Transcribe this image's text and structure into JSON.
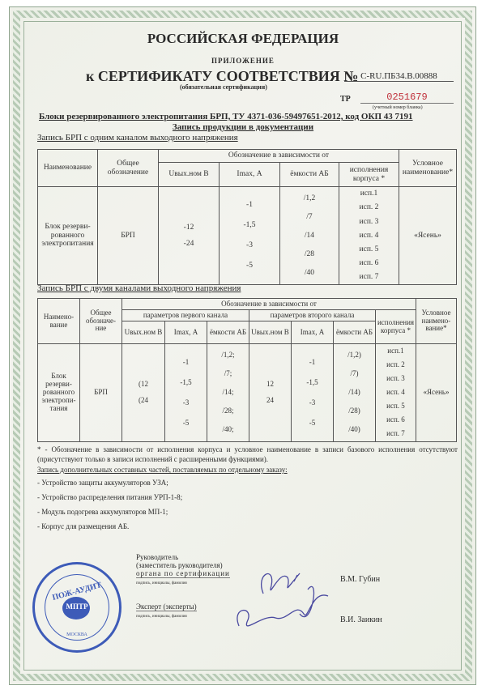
{
  "header": {
    "country": "РОССИЙСКАЯ ФЕДЕРАЦИЯ",
    "appendix": "ПРИЛОЖЕНИЕ",
    "cert_title": "к СЕРТИФИКАТУ СООТВЕТСТВИЯ  №",
    "cert_number": "C-RU.ПБ34.В.00888",
    "cert_type": "(обязательная сертификация)",
    "tr_label": "ТР",
    "form_number": "0251679",
    "form_number_caption": "(учетный номер бланка)",
    "form_number_color": "#c0303a"
  },
  "product": {
    "title": "Блоки резервированного электропитания БРП, ТУ 4371-036-59497651-2012, код ОКП 43 7191",
    "subtitle": "Запись продукции в документации"
  },
  "table1": {
    "caption": "Запись БРП с одним каналом выходного напряжения",
    "headers": {
      "name": "Наименование",
      "common": "Общее обозначение",
      "group": "Обозначение в зависимости от",
      "u": "Uвых.ном В",
      "i": "Imax, А",
      "cap": "ёмкости АБ",
      "exec": "исполнения корпуса *",
      "cond": "Условное наименование*"
    },
    "row": {
      "name": "Блок резерви-рованного электропитания",
      "common": "БРП",
      "u": [
        "-12",
        "-24"
      ],
      "i": [
        "-1",
        "-1,5",
        "-3",
        "-5"
      ],
      "cap": [
        "/1,2",
        "/7",
        "/14",
        "/28",
        "/40"
      ],
      "exec": [
        "исп.1",
        "исп. 2",
        "исп. 3",
        "исп. 4",
        "исп. 5",
        "исп. 6",
        "исп. 7"
      ],
      "cond": "«Ясень»"
    }
  },
  "table2": {
    "caption": "Запись БРП с двумя каналами выходного напряжения",
    "headers": {
      "name": "Наимено-вание",
      "common": "Общее обозначе-ние",
      "group": "Обозначение в зависимости от",
      "ch1": "параметров первого канала",
      "ch2": "параметров второго канала",
      "u": "Uвых.ном В",
      "i": "Imax, А",
      "cap": "ёмкости АБ",
      "exec": "исполнения корпуса *",
      "cond": "Условное наимено-вание*"
    },
    "row": {
      "name": "Блок резерви-рованного электропи-тания",
      "common": "БРП",
      "u1": [
        "(12",
        "(24"
      ],
      "i1": [
        "-1",
        "-1,5",
        "-3",
        "-5"
      ],
      "cap1": [
        "/1,2;",
        "/7;",
        "/14;",
        "/28;",
        "/40;"
      ],
      "u2": [
        "12",
        "24"
      ],
      "i2": [
        "-1",
        "-1,5",
        "-3",
        "-5"
      ],
      "cap2": [
        "/1,2)",
        "/7)",
        "/14)",
        "/28)",
        "/40)"
      ],
      "exec": [
        "исп.1",
        "исп. 2",
        "исп. 3",
        "исп. 4",
        "исп. 5",
        "исп. 6",
        "исп. 7"
      ],
      "cond": "«Ясень»"
    }
  },
  "footnote": "* - Обозначение в зависимости от исполнения корпуса и условное наименование в записи базового исполнения отсутствуют (присутствуют только в записи исполнений с расширенными функциями).",
  "extras": {
    "title": "Запись дополнительных составных частей, поставляемых по отдельному заказу:",
    "items": [
      "- Устройство защиты аккумуляторов УЗА;",
      "- Устройство распределения питания УРП-1-8;",
      "- Модуль подогрева аккумуляторов МП-1;",
      "- Корпус для размещения АБ."
    ]
  },
  "signatures": {
    "head_label": "Руководитель",
    "head_label2": "(заместитель руководителя)",
    "head_label3": "органа по сертификации",
    "caption": "подпись, инициалы, фамилия",
    "head_name": "В.М. Губин",
    "expert_label": "Эксперт (эксперты)",
    "expert_name": "В.И. Заикин"
  },
  "stamp": {
    "text": "ПОЖ-АУДИТ",
    "center": "МПТР",
    "city": "МОСКВА",
    "color": "#3d5bb8"
  }
}
